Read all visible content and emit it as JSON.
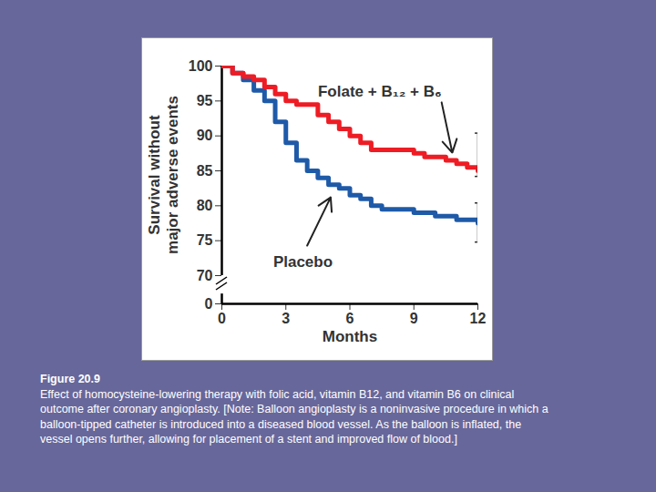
{
  "chart_data": {
    "type": "line",
    "y_label": "Survival without\nmajor adverse events",
    "x_label": "Months",
    "caption_title": "Figure 20.9",
    "caption": "Effect of homocysteine-lowering therapy with folic acid, vitamin B12, and vitamin B6 on clinical outcome after coronary angioplasty. [Note: Balloon angioplasty is a noninvasive procedure in which a balloon-tipped catheter is introduced into a diseased blood vessel. As the balloon is inflated, the vessel opens further, allowing for placement of a stent and improved flow of blood.]",
    "line_style": "step",
    "grid": false,
    "x": [
      0,
      0.5,
      1,
      1.5,
      2,
      2.5,
      3,
      3.5,
      4,
      4.5,
      5,
      5.5,
      6,
      6.5,
      7,
      7.5,
      8,
      8.5,
      9,
      9.5,
      10,
      10.5,
      11,
      11.5,
      12
    ],
    "series": [
      {
        "name": "Folate + B₁₂ + B₆",
        "color": "#ee1c24",
        "values": [
          100,
          99,
          98.5,
          98,
          97,
          96,
          95,
          94.5,
          94.5,
          93,
          92,
          91,
          90,
          89,
          88,
          88,
          88,
          88,
          87.5,
          87,
          87,
          86.5,
          86,
          85.5,
          85
        ],
        "ci": [
          84.2,
          90.4
        ]
      },
      {
        "name": "Placebo",
        "color": "#1e5aa8",
        "values": [
          100,
          99,
          98,
          96.5,
          95,
          92,
          89,
          86.5,
          85,
          84,
          83,
          82.5,
          81.5,
          81,
          80,
          79.5,
          79.5,
          79.5,
          79,
          79,
          78.5,
          78.5,
          78,
          78,
          77.5
        ],
        "ci": [
          74.8,
          80.4
        ]
      }
    ],
    "xlim": [
      0,
      12
    ],
    "xticks": [
      0,
      3,
      6,
      9,
      12
    ],
    "ylim": [
      0,
      100
    ],
    "yticks": [
      0,
      70,
      75,
      80,
      85,
      90,
      95,
      100
    ]
  }
}
